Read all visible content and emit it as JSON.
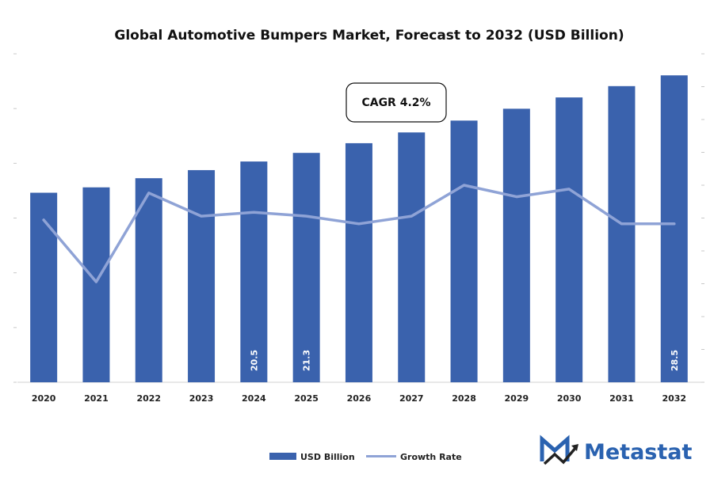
{
  "chart_data": {
    "type": "bar",
    "title": "Global Automotive Bumpers Market, Forecast to 2032 (USD Billion)",
    "categories": [
      "2020",
      "2021",
      "2022",
      "2023",
      "2024",
      "2025",
      "2026",
      "2027",
      "2028",
      "2029",
      "2030",
      "2031",
      "2032"
    ],
    "series": [
      {
        "name": "USD Billion",
        "type": "bar",
        "color": "#3a62ad",
        "values": [
          17.6,
          18.1,
          18.95,
          19.7,
          20.5,
          21.3,
          22.2,
          23.2,
          24.3,
          25.4,
          26.45,
          27.5,
          28.5
        ],
        "labels": [
          "",
          "",
          "",
          "",
          "20.5",
          "21.3",
          "",
          "",
          "",
          "",
          "",
          "",
          "28.5"
        ]
      },
      {
        "name": "Growth Rate",
        "type": "line",
        "color": "#8fa3d6",
        "values": [
          4.2,
          2.6,
          4.9,
          4.3,
          4.4,
          4.3,
          4.1,
          4.3,
          5.1,
          4.8,
          5.0,
          4.1,
          4.1
        ]
      }
    ],
    "ylim_bars": [
      0,
      30.5
    ],
    "ylim_line": [
      0,
      8.5
    ],
    "grid": false,
    "legend": "bottom-center",
    "annotation": "CAGR 4.2%"
  },
  "branding": {
    "logo_text": "Metastat",
    "logo_color": "#2a62b0"
  }
}
